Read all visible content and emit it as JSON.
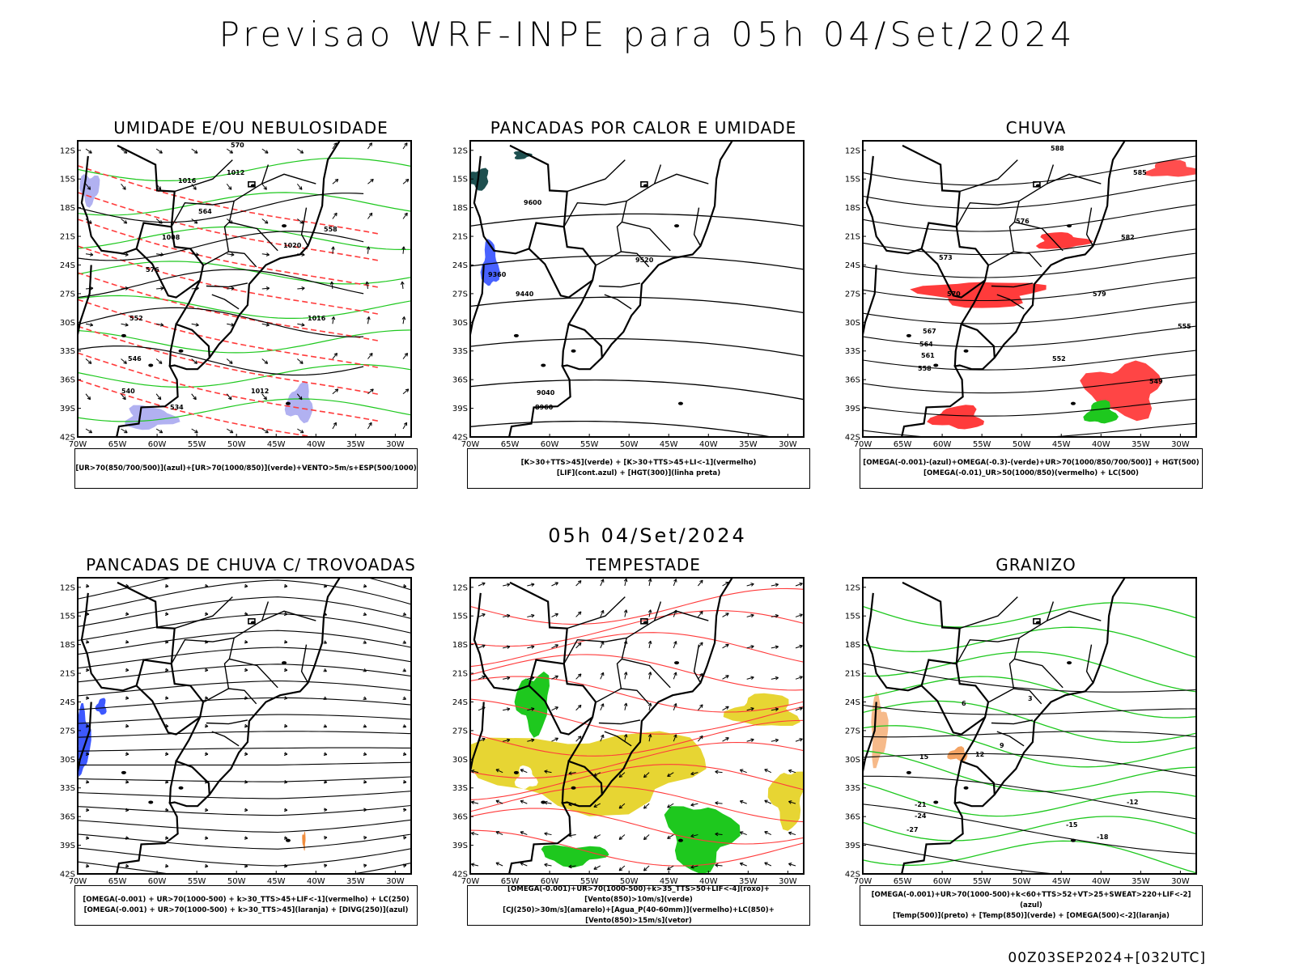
{
  "title": "Previsao WRF-INPE  para 05h 04/Set/2024",
  "mid_title": "05h 04/Set/2024",
  "footer": "00Z03SEP2024+[032UTC]",
  "lat_labels": [
    "12S",
    "15S",
    "18S",
    "21S",
    "24S",
    "27S",
    "30S",
    "33S",
    "36S",
    "39S",
    "42S"
  ],
  "lon_labels": [
    "70W",
    "65W",
    "60W",
    "55W",
    "50W",
    "45W",
    "40W",
    "35W",
    "30W"
  ],
  "colors": {
    "coast": "#000000",
    "green": "#1ec81e",
    "red": "#ff3b3b",
    "blue": "#2846ff",
    "lavender": "#a8a8f0",
    "yellow": "#e6d328",
    "orange": "#f08c3c",
    "teal": "#1e5050"
  },
  "panels": [
    {
      "title": "UMIDADE E/OU NEBULOSIDADE",
      "legend": [
        "[UR>70(850/700/500)](azul)+[UR>70(1000/850)](verde)+VENTO>5m/s+ESP(500/1000)"
      ],
      "contour_labels": [
        "1016",
        "1012",
        "1008",
        "1020",
        "1016",
        "1012",
        "576",
        "570",
        "564",
        "558",
        "552",
        "546",
        "540",
        "534"
      ]
    },
    {
      "title": "PANCADAS POR CALOR E UMIDADE",
      "legend": [
        "[K>30+TTS>45](verde) + [K>30+TTS>45+LI<-1](vermelho)",
        "[LIF](cont.azul) + [HGT(300)](linha preta)"
      ],
      "contour_labels": [
        "9600",
        "9520",
        "9440",
        "9360",
        "9040",
        "8960"
      ]
    },
    {
      "title": "CHUVA",
      "legend": [
        "[OMEGA(-0.001)-(azul)+OMEGA(-0.3)-(verde)+UR>70(1000/850/700/500)] + HGT(500)",
        "[OMEGA(-0.01)_UR>50(1000/850)(vermelho) + LC(500)"
      ],
      "contour_labels": [
        "588",
        "585",
        "582",
        "579",
        "576",
        "573",
        "570",
        "567",
        "564",
        "561",
        "558",
        "555",
        "552",
        "549"
      ]
    },
    {
      "title": "PANCADAS DE CHUVA C/ TROVOADAS",
      "legend": [
        "[OMEGA(-0.001) + UR>70(1000-500) + k>30_TTS>45+LIF<-1](vermelho) + LC(250)",
        "[OMEGA(-0.001) + UR>70(1000-500) + k>30_TTS>45](laranja) + [DIVG(250)](azul)"
      ],
      "contour_labels": []
    },
    {
      "title": "TEMPESTADE",
      "legend": [
        "[OMEGA(-0.001)+UR>70(1000-500)+k>35_TTS>50+LIF<-4](roxo)+[Vento(850)>10m/s](verde)",
        "[CJ(250)>30m/s](amarelo)+[Agua_P(40-60mm)](vermelho)+LC(850)+[Vento(850)>15m/s](vetor)"
      ],
      "contour_labels": []
    },
    {
      "title": "GRANIZO",
      "legend": [
        "[OMEGA(-0.001)+UR>70(1000-500)+k<60+TTS>52+VT>25+SWEAT>220+LIF<-2](azul)",
        "[Temp(500)](preto) + [Temp(850)](verde) + [OMEGA(500)<-2](laranja)"
      ],
      "contour_labels": [
        "-21",
        "-24",
        "-27",
        "-18",
        "-15",
        "-12",
        "15",
        "12",
        "9",
        "6",
        "3"
      ]
    }
  ]
}
